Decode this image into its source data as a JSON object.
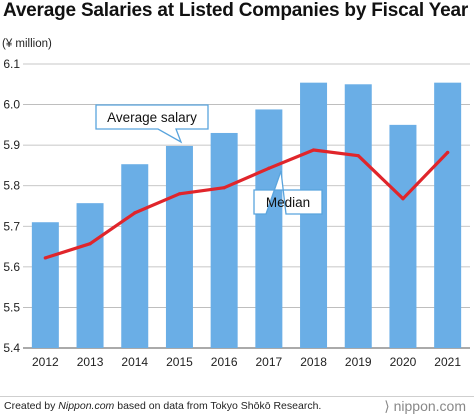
{
  "title": "Average Salaries at Listed Companies by Fiscal Year",
  "unit_label": "(¥ million)",
  "footer": {
    "credit_prefix": "Created by ",
    "credit_site": "Nippon.com",
    "credit_suffix": " based on data from Tokyo Shōkō Research.",
    "brand": "⟩ nippon.com"
  },
  "colors": {
    "bar": "#6aaee6",
    "line": "#e0252b",
    "grid": "#b5b5b5",
    "callout_border": "#59a4dd"
  },
  "chart_data": {
    "type": "bar",
    "categories": [
      "2012",
      "2013",
      "2014",
      "2015",
      "2016",
      "2017",
      "2018",
      "2019",
      "2020",
      "2021"
    ],
    "ylim": [
      5.4,
      6.1
    ],
    "yticks": [
      "5.4",
      "5.5",
      "5.6",
      "5.7",
      "5.8",
      "5.9",
      "6.0",
      "6.1"
    ],
    "grid": true,
    "series": [
      {
        "name": "Average salary",
        "type": "bar",
        "values": [
          5.71,
          5.757,
          5.853,
          5.898,
          5.93,
          5.988,
          6.054,
          6.05,
          5.95,
          6.054
        ]
      },
      {
        "name": "Median",
        "type": "line",
        "values": [
          5.622,
          5.657,
          5.733,
          5.78,
          5.795,
          5.843,
          5.888,
          5.874,
          5.768,
          5.882
        ]
      }
    ]
  }
}
